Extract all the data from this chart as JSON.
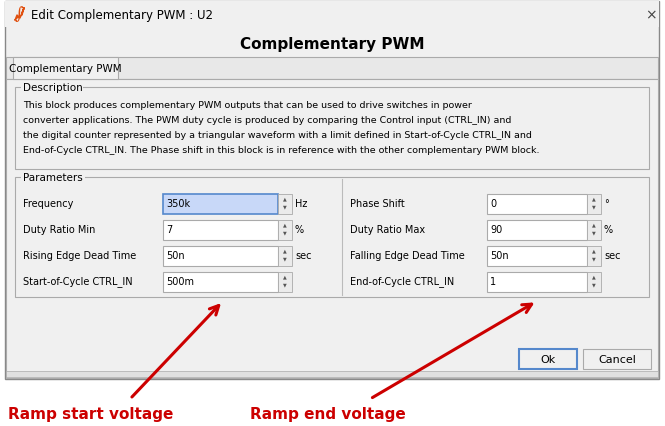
{
  "title": "Edit Complementary PWM : U2",
  "dialog_title": "Complementary PWM",
  "tab_label": "Complementary PWM",
  "description_title": "Description",
  "description_text_lines": [
    "This block produces complementary PWM outputs that can be used to drive switches in power",
    "converter applications. The PWM duty cycle is produced by comparing the Control input (CTRL_IN) and",
    "the digital counter represented by a triangular waveform with a limit defined in Start-of-Cycle CTRL_IN and",
    "End-of-Cycle CTRL_IN. The Phase shift in this block is in reference with the other complementary PWM block."
  ],
  "params_title": "Parameters",
  "params_left": [
    {
      "label": "Frequency",
      "value": "350k",
      "unit": "Hz",
      "highlight": true
    },
    {
      "label": "Duty Ratio Min",
      "value": "7",
      "unit": "%",
      "highlight": false
    },
    {
      "label": "Rising Edge Dead Time",
      "value": "50n",
      "unit": "sec",
      "highlight": false
    },
    {
      "label": "Start-of-Cycle CTRL_IN",
      "value": "500m",
      "unit": "",
      "highlight": false
    }
  ],
  "params_right": [
    {
      "label": "Phase Shift",
      "value": "0",
      "unit": "°",
      "highlight": false
    },
    {
      "label": "Duty Ratio Max",
      "value": "90",
      "unit": "%",
      "highlight": false
    },
    {
      "label": "Falling Edge Dead Time",
      "value": "50n",
      "unit": "sec",
      "highlight": false
    },
    {
      "label": "End-of-Cycle CTRL_IN",
      "value": "1",
      "unit": "",
      "highlight": false
    }
  ],
  "ok_button": "Ok",
  "cancel_button": "Cancel",
  "annotation_left": "Ramp start voltage",
  "annotation_right": "Ramp end voltage",
  "win_bg": "#f0f0f0",
  "content_bg": "#f5f5f5",
  "white": "#ffffff",
  "hi_fill": "#c8d8f8",
  "hi_edge": "#5588cc",
  "border": "#aaaaaa",
  "red": "#cc0000",
  "outer_bg": "#ffffff"
}
